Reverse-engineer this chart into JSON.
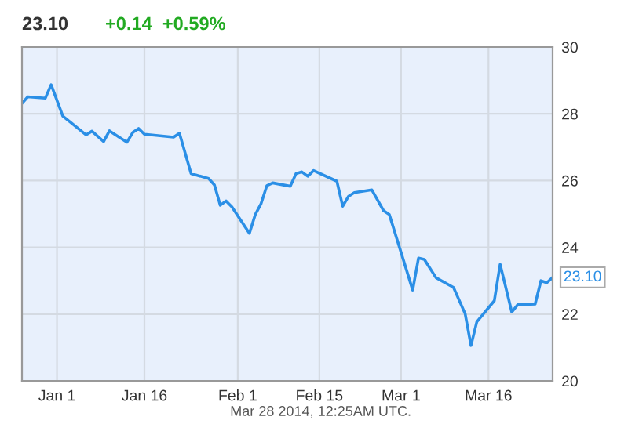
{
  "chart_data": {
    "type": "line",
    "title": "23.10",
    "subtitle": "+0.14  +0.59%",
    "x": [
      "2013-12-26",
      "2013-12-27",
      "2013-12-30",
      "2013-12-31",
      "2014-01-02",
      "2014-01-06",
      "2014-01-07",
      "2014-01-09",
      "2014-01-10",
      "2014-01-13",
      "2014-01-14",
      "2014-01-15",
      "2014-01-16",
      "2014-01-21",
      "2014-01-22",
      "2014-01-24",
      "2014-01-27",
      "2014-01-28",
      "2014-01-29",
      "2014-01-30",
      "2014-01-31",
      "2014-02-03",
      "2014-02-04",
      "2014-02-05",
      "2014-02-06",
      "2014-02-07",
      "2014-02-10",
      "2014-02-11",
      "2014-02-12",
      "2014-02-13",
      "2014-02-14",
      "2014-02-18",
      "2014-02-19",
      "2014-02-20",
      "2014-02-21",
      "2014-02-24",
      "2014-02-26",
      "2014-02-27",
      "2014-03-03",
      "2014-03-04",
      "2014-03-05",
      "2014-03-07",
      "2014-03-10",
      "2014-03-12",
      "2014-03-13",
      "2014-03-14",
      "2014-03-17",
      "2014-03-18",
      "2014-03-20",
      "2014-03-21",
      "2014-03-24",
      "2014-03-25",
      "2014-03-26",
      "2014-03-27"
    ],
    "series": [
      {
        "color": "#2b8fe6",
        "values": [
          28.31,
          28.51,
          28.47,
          28.87,
          27.93,
          27.37,
          27.48,
          27.17,
          27.49,
          27.15,
          27.44,
          27.56,
          27.39,
          27.3,
          27.42,
          26.21,
          26.06,
          25.87,
          25.26,
          25.39,
          25.21,
          24.42,
          24.98,
          25.31,
          25.85,
          25.93,
          25.83,
          26.21,
          26.26,
          26.13,
          26.3,
          25.98,
          25.23,
          25.53,
          25.64,
          25.72,
          25.1,
          24.98,
          22.72,
          23.68,
          23.64,
          23.09,
          22.8,
          22.01,
          21.06,
          21.77,
          22.4,
          23.49,
          22.06,
          22.28,
          22.3,
          23.0,
          22.94,
          23.1
        ]
      }
    ],
    "xlim": [
      "2013-12-26",
      "2014-03-27"
    ],
    "xticks": [
      {
        "value": "2014-01-01",
        "label": "Jan 1"
      },
      {
        "value": "2014-01-16",
        "label": "Jan 16"
      },
      {
        "value": "2014-02-01",
        "label": "Feb 1"
      },
      {
        "value": "2014-02-15",
        "label": "Feb 15"
      },
      {
        "value": "2014-03-01",
        "label": "Mar 1"
      },
      {
        "value": "2014-03-16",
        "label": "Mar 16"
      }
    ],
    "ylim": [
      20,
      30
    ],
    "yticks": [
      20,
      22,
      24,
      26,
      28,
      30
    ],
    "grid": true,
    "legend": false,
    "marker": "none",
    "line_style": "solid",
    "annotations": [
      {
        "text": "23.10",
        "x": "2014-03-27",
        "y": 23.1
      },
      "Mar 28 2014, 12:25AM UTC."
    ]
  }
}
